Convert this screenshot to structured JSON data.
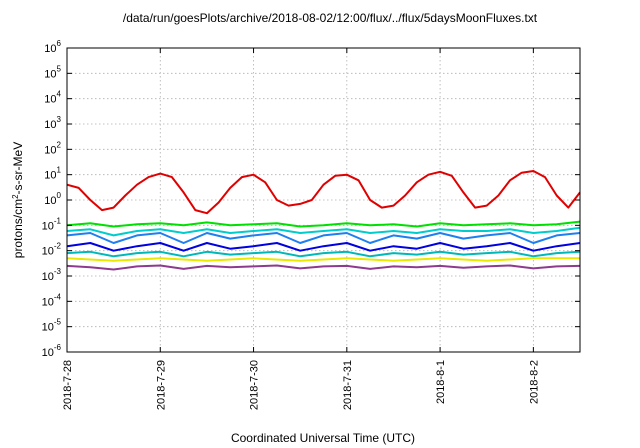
{
  "chart_data": {
    "type": "line",
    "title": "/data/run/goesPlots/archive/2018-08-02/12:00/flux/../flux/5daysMoonFluxes.txt",
    "xlabel": "Coordinated Universal Time (UTC)",
    "ylabel_prefix": "protons/cm",
    "ylabel_exponent": "2",
    "ylabel_suffix": "-s-sr-MeV",
    "x_range": [
      "2018-07-28T00:00",
      "2018-08-02T12:00"
    ],
    "x_ticks": [
      "2018-7-28",
      "2018-7-29",
      "2018-7-30",
      "2018-7-31",
      "2018-8-1",
      "2018-8-2"
    ],
    "y_scale": "log",
    "ylim": [
      1e-06,
      1000000.0
    ],
    "y_ticks": [
      {
        "base": "10",
        "exp": "-6",
        "value": 1e-06
      },
      {
        "base": "10",
        "exp": "-5",
        "value": 1e-05
      },
      {
        "base": "10",
        "exp": "-4",
        "value": 0.0001
      },
      {
        "base": "10",
        "exp": "-3",
        "value": 0.001
      },
      {
        "base": "10",
        "exp": "-2",
        "value": 0.01
      },
      {
        "base": "10",
        "exp": "-1",
        "value": 0.1
      },
      {
        "base": "10",
        "exp": "0",
        "value": 1
      },
      {
        "base": "10",
        "exp": "1",
        "value": 10
      },
      {
        "base": "10",
        "exp": "2",
        "value": 100
      },
      {
        "base": "10",
        "exp": "3",
        "value": 1000
      },
      {
        "base": "10",
        "exp": "4",
        "value": 10000
      },
      {
        "base": "10",
        "exp": "5",
        "value": 100000
      },
      {
        "base": "10",
        "exp": "6",
        "value": 1000000
      }
    ],
    "grid": true,
    "legend": "none",
    "series": [
      {
        "color": "#e00000",
        "x": [
          "2018-07-28T00:00",
          "2018-07-28T03:00",
          "2018-07-28T06:00",
          "2018-07-28T09:00",
          "2018-07-28T12:00",
          "2018-07-28T15:00",
          "2018-07-28T18:00",
          "2018-07-28T21:00",
          "2018-07-29T00:00",
          "2018-07-29T03:00",
          "2018-07-29T06:00",
          "2018-07-29T09:00",
          "2018-07-29T12:00",
          "2018-07-29T15:00",
          "2018-07-29T18:00",
          "2018-07-29T21:00",
          "2018-07-30T00:00",
          "2018-07-30T03:00",
          "2018-07-30T06:00",
          "2018-07-30T09:00",
          "2018-07-30T12:00",
          "2018-07-30T15:00",
          "2018-07-30T18:00",
          "2018-07-30T21:00",
          "2018-07-31T00:00",
          "2018-07-31T03:00",
          "2018-07-31T06:00",
          "2018-07-31T09:00",
          "2018-07-31T12:00",
          "2018-07-31T15:00",
          "2018-07-31T18:00",
          "2018-07-31T21:00",
          "2018-08-01T00:00",
          "2018-08-01T03:00",
          "2018-08-01T06:00",
          "2018-08-01T09:00",
          "2018-08-01T12:00",
          "2018-08-01T15:00",
          "2018-08-01T18:00",
          "2018-08-01T21:00",
          "2018-08-02T00:00",
          "2018-08-02T03:00",
          "2018-08-02T06:00",
          "2018-08-02T09:00",
          "2018-08-02T12:00"
        ],
        "y": [
          4,
          3,
          1,
          0.4,
          0.5,
          1.5,
          4,
          8,
          11,
          8,
          2,
          0.4,
          0.3,
          0.8,
          3,
          8,
          10,
          5,
          1,
          0.6,
          0.7,
          1,
          4,
          9,
          10,
          6,
          1,
          0.5,
          0.6,
          1.5,
          5,
          10,
          13,
          9,
          2,
          0.5,
          0.6,
          1.5,
          6,
          12,
          14,
          8,
          1.5,
          0.5,
          2
        ]
      },
      {
        "color": "#00e000",
        "x": [
          "2018-07-28T00:00",
          "2018-07-28T06:00",
          "2018-07-28T12:00",
          "2018-07-28T18:00",
          "2018-07-29T00:00",
          "2018-07-29T06:00",
          "2018-07-29T12:00",
          "2018-07-29T18:00",
          "2018-07-30T00:00",
          "2018-07-30T06:00",
          "2018-07-30T12:00",
          "2018-07-30T18:00",
          "2018-07-31T00:00",
          "2018-07-31T06:00",
          "2018-07-31T12:00",
          "2018-07-31T18:00",
          "2018-08-01T00:00",
          "2018-08-01T06:00",
          "2018-08-01T12:00",
          "2018-08-01T18:00",
          "2018-08-02T00:00",
          "2018-08-02T06:00",
          "2018-08-02T12:00"
        ],
        "y": [
          0.1,
          0.12,
          0.09,
          0.11,
          0.12,
          0.1,
          0.13,
          0.1,
          0.11,
          0.12,
          0.09,
          0.1,
          0.12,
          0.1,
          0.11,
          0.09,
          0.12,
          0.1,
          0.11,
          0.12,
          0.1,
          0.11,
          0.14
        ]
      },
      {
        "color": "#00cccc",
        "x": [
          "2018-07-28T00:00",
          "2018-07-28T06:00",
          "2018-07-28T12:00",
          "2018-07-28T18:00",
          "2018-07-29T00:00",
          "2018-07-29T06:00",
          "2018-07-29T12:00",
          "2018-07-29T18:00",
          "2018-07-30T00:00",
          "2018-07-30T06:00",
          "2018-07-30T12:00",
          "2018-07-30T18:00",
          "2018-07-31T00:00",
          "2018-07-31T06:00",
          "2018-07-31T12:00",
          "2018-07-31T18:00",
          "2018-08-01T00:00",
          "2018-08-01T06:00",
          "2018-08-01T12:00",
          "2018-08-01T18:00",
          "2018-08-02T00:00",
          "2018-08-02T06:00",
          "2018-08-02T12:00"
        ],
        "y": [
          0.06,
          0.07,
          0.04,
          0.06,
          0.07,
          0.05,
          0.07,
          0.05,
          0.06,
          0.07,
          0.05,
          0.06,
          0.07,
          0.05,
          0.06,
          0.05,
          0.07,
          0.06,
          0.06,
          0.07,
          0.05,
          0.06,
          0.08
        ]
      },
      {
        "color": "#1e7ff0",
        "x": [
          "2018-07-28T00:00",
          "2018-07-28T06:00",
          "2018-07-28T12:00",
          "2018-07-28T18:00",
          "2018-07-29T00:00",
          "2018-07-29T06:00",
          "2018-07-29T12:00",
          "2018-07-29T18:00",
          "2018-07-30T00:00",
          "2018-07-30T06:00",
          "2018-07-30T12:00",
          "2018-07-30T18:00",
          "2018-07-31T00:00",
          "2018-07-31T06:00",
          "2018-07-31T12:00",
          "2018-07-31T18:00",
          "2018-08-01T00:00",
          "2018-08-01T06:00",
          "2018-08-01T12:00",
          "2018-08-01T18:00",
          "2018-08-02T00:00",
          "2018-08-02T06:00",
          "2018-08-02T12:00"
        ],
        "y": [
          0.04,
          0.05,
          0.02,
          0.04,
          0.05,
          0.02,
          0.05,
          0.03,
          0.04,
          0.05,
          0.02,
          0.04,
          0.05,
          0.02,
          0.04,
          0.03,
          0.05,
          0.03,
          0.04,
          0.05,
          0.02,
          0.04,
          0.05
        ]
      },
      {
        "color": "#0000e0",
        "x": [
          "2018-07-28T00:00",
          "2018-07-28T06:00",
          "2018-07-28T12:00",
          "2018-07-28T18:00",
          "2018-07-29T00:00",
          "2018-07-29T06:00",
          "2018-07-29T12:00",
          "2018-07-29T18:00",
          "2018-07-30T00:00",
          "2018-07-30T06:00",
          "2018-07-30T12:00",
          "2018-07-30T18:00",
          "2018-07-31T00:00",
          "2018-07-31T06:00",
          "2018-07-31T12:00",
          "2018-07-31T18:00",
          "2018-08-01T00:00",
          "2018-08-01T06:00",
          "2018-08-01T12:00",
          "2018-08-01T18:00",
          "2018-08-02T00:00",
          "2018-08-02T06:00",
          "2018-08-02T12:00"
        ],
        "y": [
          0.015,
          0.02,
          0.01,
          0.015,
          0.02,
          0.01,
          0.02,
          0.012,
          0.015,
          0.02,
          0.01,
          0.015,
          0.02,
          0.01,
          0.015,
          0.012,
          0.02,
          0.012,
          0.015,
          0.02,
          0.01,
          0.015,
          0.02
        ]
      },
      {
        "color": "#00b8b8",
        "x": [
          "2018-07-28T00:00",
          "2018-07-28T06:00",
          "2018-07-28T12:00",
          "2018-07-28T18:00",
          "2018-07-29T00:00",
          "2018-07-29T06:00",
          "2018-07-29T12:00",
          "2018-07-29T18:00",
          "2018-07-30T00:00",
          "2018-07-30T06:00",
          "2018-07-30T12:00",
          "2018-07-30T18:00",
          "2018-07-31T00:00",
          "2018-07-31T06:00",
          "2018-07-31T12:00",
          "2018-07-31T18:00",
          "2018-08-01T00:00",
          "2018-08-01T06:00",
          "2018-08-01T12:00",
          "2018-08-01T18:00",
          "2018-08-02T00:00",
          "2018-08-02T06:00",
          "2018-08-02T12:00"
        ],
        "y": [
          0.008,
          0.009,
          0.006,
          0.008,
          0.009,
          0.006,
          0.009,
          0.007,
          0.008,
          0.009,
          0.006,
          0.008,
          0.009,
          0.006,
          0.008,
          0.007,
          0.009,
          0.007,
          0.008,
          0.009,
          0.006,
          0.008,
          0.009
        ]
      },
      {
        "color": "#e8e800",
        "x": [
          "2018-07-28T00:00",
          "2018-07-28T12:00",
          "2018-07-29T00:00",
          "2018-07-29T12:00",
          "2018-07-30T00:00",
          "2018-07-30T12:00",
          "2018-07-31T00:00",
          "2018-07-31T12:00",
          "2018-08-01T00:00",
          "2018-08-01T12:00",
          "2018-08-02T00:00",
          "2018-08-02T12:00"
        ],
        "y": [
          0.005,
          0.004,
          0.005,
          0.004,
          0.005,
          0.004,
          0.005,
          0.004,
          0.005,
          0.004,
          0.005,
          0.005
        ]
      },
      {
        "color": "#8e3a8e",
        "x": [
          "2018-07-28T00:00",
          "2018-07-28T06:00",
          "2018-07-28T12:00",
          "2018-07-28T18:00",
          "2018-07-29T00:00",
          "2018-07-29T06:00",
          "2018-07-29T12:00",
          "2018-07-29T18:00",
          "2018-07-30T00:00",
          "2018-07-30T06:00",
          "2018-07-30T12:00",
          "2018-07-30T18:00",
          "2018-07-31T00:00",
          "2018-07-31T06:00",
          "2018-07-31T12:00",
          "2018-07-31T18:00",
          "2018-08-01T00:00",
          "2018-08-01T06:00",
          "2018-08-01T12:00",
          "2018-08-01T18:00",
          "2018-08-02T00:00",
          "2018-08-02T06:00",
          "2018-08-02T12:00"
        ],
        "y": [
          0.0025,
          0.0022,
          0.0018,
          0.0024,
          0.0026,
          0.0019,
          0.0025,
          0.0022,
          0.0024,
          0.0026,
          0.002,
          0.0024,
          0.0025,
          0.0019,
          0.0024,
          0.0022,
          0.0025,
          0.0021,
          0.0024,
          0.0026,
          0.002,
          0.0024,
          0.0025
        ]
      }
    ]
  }
}
